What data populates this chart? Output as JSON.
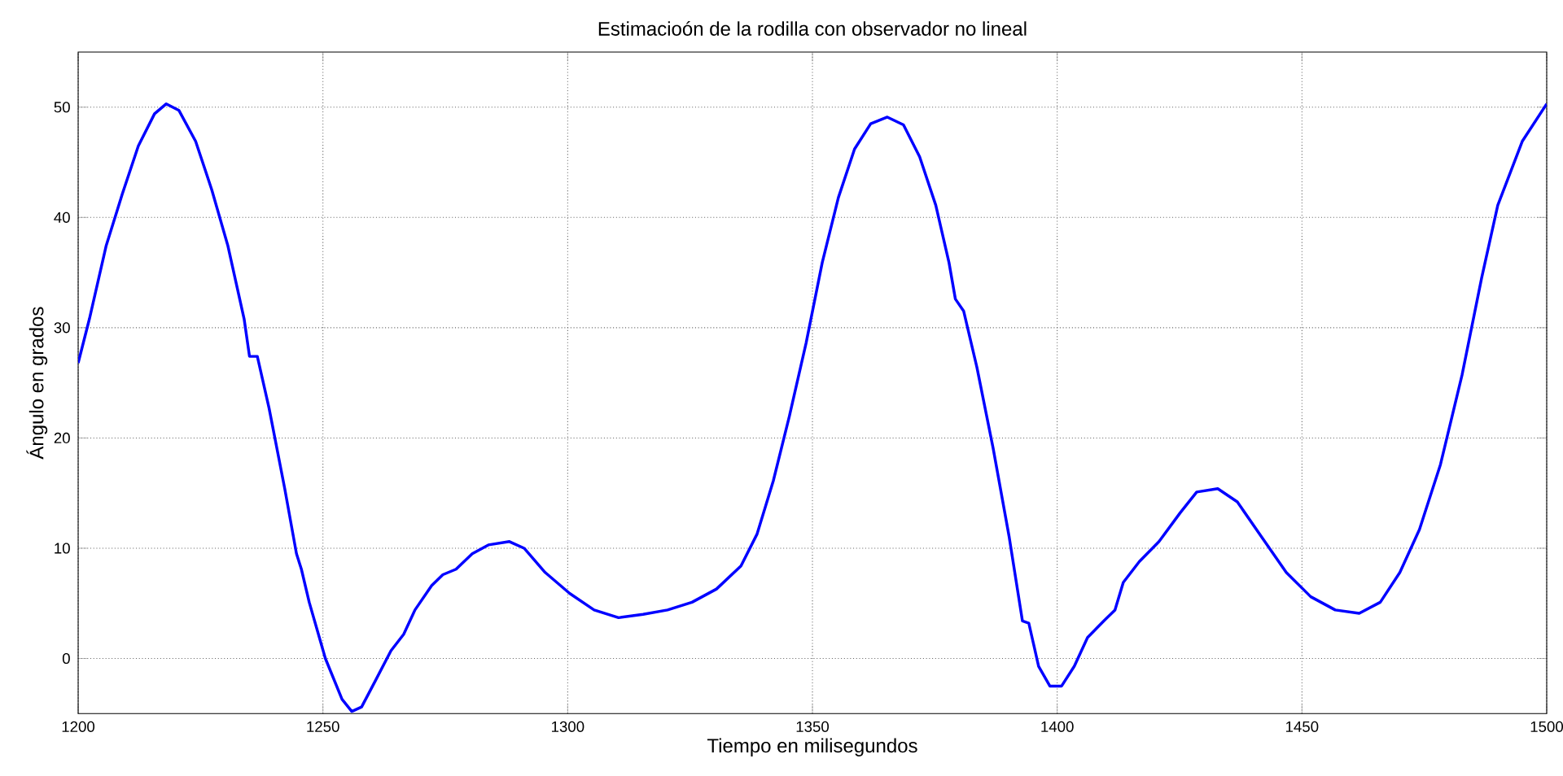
{
  "chart_data": {
    "type": "line",
    "title": "Estimacioón de la rodilla con observador no lineal",
    "xlabel": "Tiempo en milisegundos",
    "ylabel": "Ángulo en grados",
    "x": [
      1200,
      1202.3,
      1205.7,
      1209,
      1212.3,
      1215.6,
      1218,
      1220.6,
      1224,
      1227.3,
      1230.6,
      1233.9,
      1235,
      1236.6,
      1239,
      1242.2,
      1244.6,
      1245.6,
      1247.2,
      1250.5,
      1253.9,
      1255.9,
      1257.9,
      1260.5,
      1263.9,
      1266.5,
      1268.8,
      1272.2,
      1274.5,
      1277.2,
      1280.5,
      1283.8,
      1288.1,
      1291.1,
      1295.4,
      1300.4,
      1305.4,
      1310.4,
      1315.4,
      1320.4,
      1325.4,
      1330.4,
      1335.4,
      1338.7,
      1342,
      1345.3,
      1348.7,
      1352,
      1355.3,
      1358.6,
      1361.9,
      1365.3,
      1368.6,
      1371.9,
      1375.2,
      1377.9,
      1379.2,
      1380.9,
      1383.6,
      1386.9,
      1390.2,
      1392.9,
      1394.2,
      1396.2,
      1398.5,
      1400.9,
      1403.5,
      1406.2,
      1409.5,
      1411.8,
      1413.5,
      1416.8,
      1420.8,
      1425.1,
      1428.5,
      1432.8,
      1436.8,
      1441.8,
      1446.8,
      1451.8,
      1456.8,
      1461.7,
      1466,
      1470,
      1474,
      1478.3,
      1482.7,
      1486.7,
      1490,
      1495,
      1500
    ],
    "series": [
      {
        "color": "#0000ff",
        "values": [
          26.8,
          30.8,
          37.4,
          42.1,
          46.5,
          49.4,
          50.3,
          49.7,
          46.9,
          42.5,
          37.4,
          30.8,
          27.4,
          27.4,
          22.7,
          15.4,
          9.5,
          8.1,
          5.1,
          0,
          -3.7,
          -4.8,
          -4.4,
          -2.2,
          0.7,
          2.2,
          4.4,
          6.6,
          7.6,
          8.1,
          9.5,
          10.3,
          10.6,
          10,
          7.8,
          5.9,
          4.4,
          3.7,
          4,
          4.4,
          5.1,
          6.3,
          8.4,
          11.3,
          16.1,
          22,
          28.6,
          35.9,
          41.8,
          46.2,
          48.5,
          49.1,
          48.4,
          45.5,
          41.1,
          35.9,
          32.6,
          31.5,
          26.4,
          19.1,
          11,
          3.4,
          3.2,
          -0.7,
          -2.5,
          -2.5,
          -0.7,
          1.9,
          3.4,
          4.4,
          6.9,
          8.8,
          10.6,
          13.2,
          15.1,
          15.4,
          14.2,
          11,
          7.8,
          5.6,
          4.4,
          4.1,
          5.1,
          7.8,
          11.7,
          17.6,
          25.7,
          34.5,
          41.1,
          46.9,
          50.3
        ]
      }
    ],
    "xlim": [
      1200,
      1500
    ],
    "ylim": [
      -5,
      55
    ],
    "xticks": [
      1200,
      1250,
      1300,
      1350,
      1400,
      1450,
      1500
    ],
    "yticks": [
      0,
      10,
      20,
      30,
      40,
      50
    ],
    "grid": true,
    "marker": "none",
    "line_style": "solid"
  }
}
